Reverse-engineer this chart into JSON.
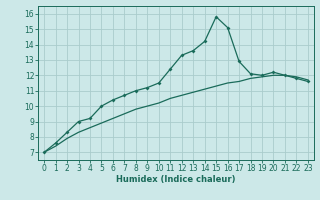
{
  "xlabel": "Humidex (Indice chaleur)",
  "background_color": "#cce8e8",
  "grid_color": "#aacccc",
  "line_color": "#1a6b5a",
  "xlim": [
    -0.5,
    23.5
  ],
  "ylim": [
    6.5,
    16.5
  ],
  "xticks": [
    0,
    1,
    2,
    3,
    4,
    5,
    6,
    7,
    8,
    9,
    10,
    11,
    12,
    13,
    14,
    15,
    16,
    17,
    18,
    19,
    20,
    21,
    22,
    23
  ],
  "yticks": [
    7,
    8,
    9,
    10,
    11,
    12,
    13,
    14,
    15,
    16
  ],
  "line1_x": [
    0,
    1,
    2,
    3,
    4,
    5,
    6,
    7,
    8,
    9,
    10,
    11,
    12,
    13,
    14,
    15,
    16,
    17,
    18,
    19,
    20,
    21,
    22,
    23
  ],
  "line1_y": [
    7.0,
    7.6,
    8.3,
    9.0,
    9.2,
    10.0,
    10.4,
    10.7,
    11.0,
    11.2,
    11.5,
    12.4,
    13.3,
    13.6,
    14.2,
    15.8,
    15.1,
    12.9,
    12.1,
    12.0,
    12.2,
    12.0,
    11.8,
    11.6
  ],
  "line2_x": [
    0,
    1,
    2,
    3,
    4,
    5,
    6,
    7,
    8,
    9,
    10,
    11,
    12,
    13,
    14,
    15,
    16,
    17,
    18,
    19,
    20,
    21,
    22,
    23
  ],
  "line2_y": [
    7.0,
    7.4,
    7.9,
    8.3,
    8.6,
    8.9,
    9.2,
    9.5,
    9.8,
    10.0,
    10.2,
    10.5,
    10.7,
    10.9,
    11.1,
    11.3,
    11.5,
    11.6,
    11.8,
    11.9,
    12.0,
    12.0,
    11.9,
    11.7
  ],
  "tick_fontsize": 5.5,
  "xlabel_fontsize": 6.0
}
